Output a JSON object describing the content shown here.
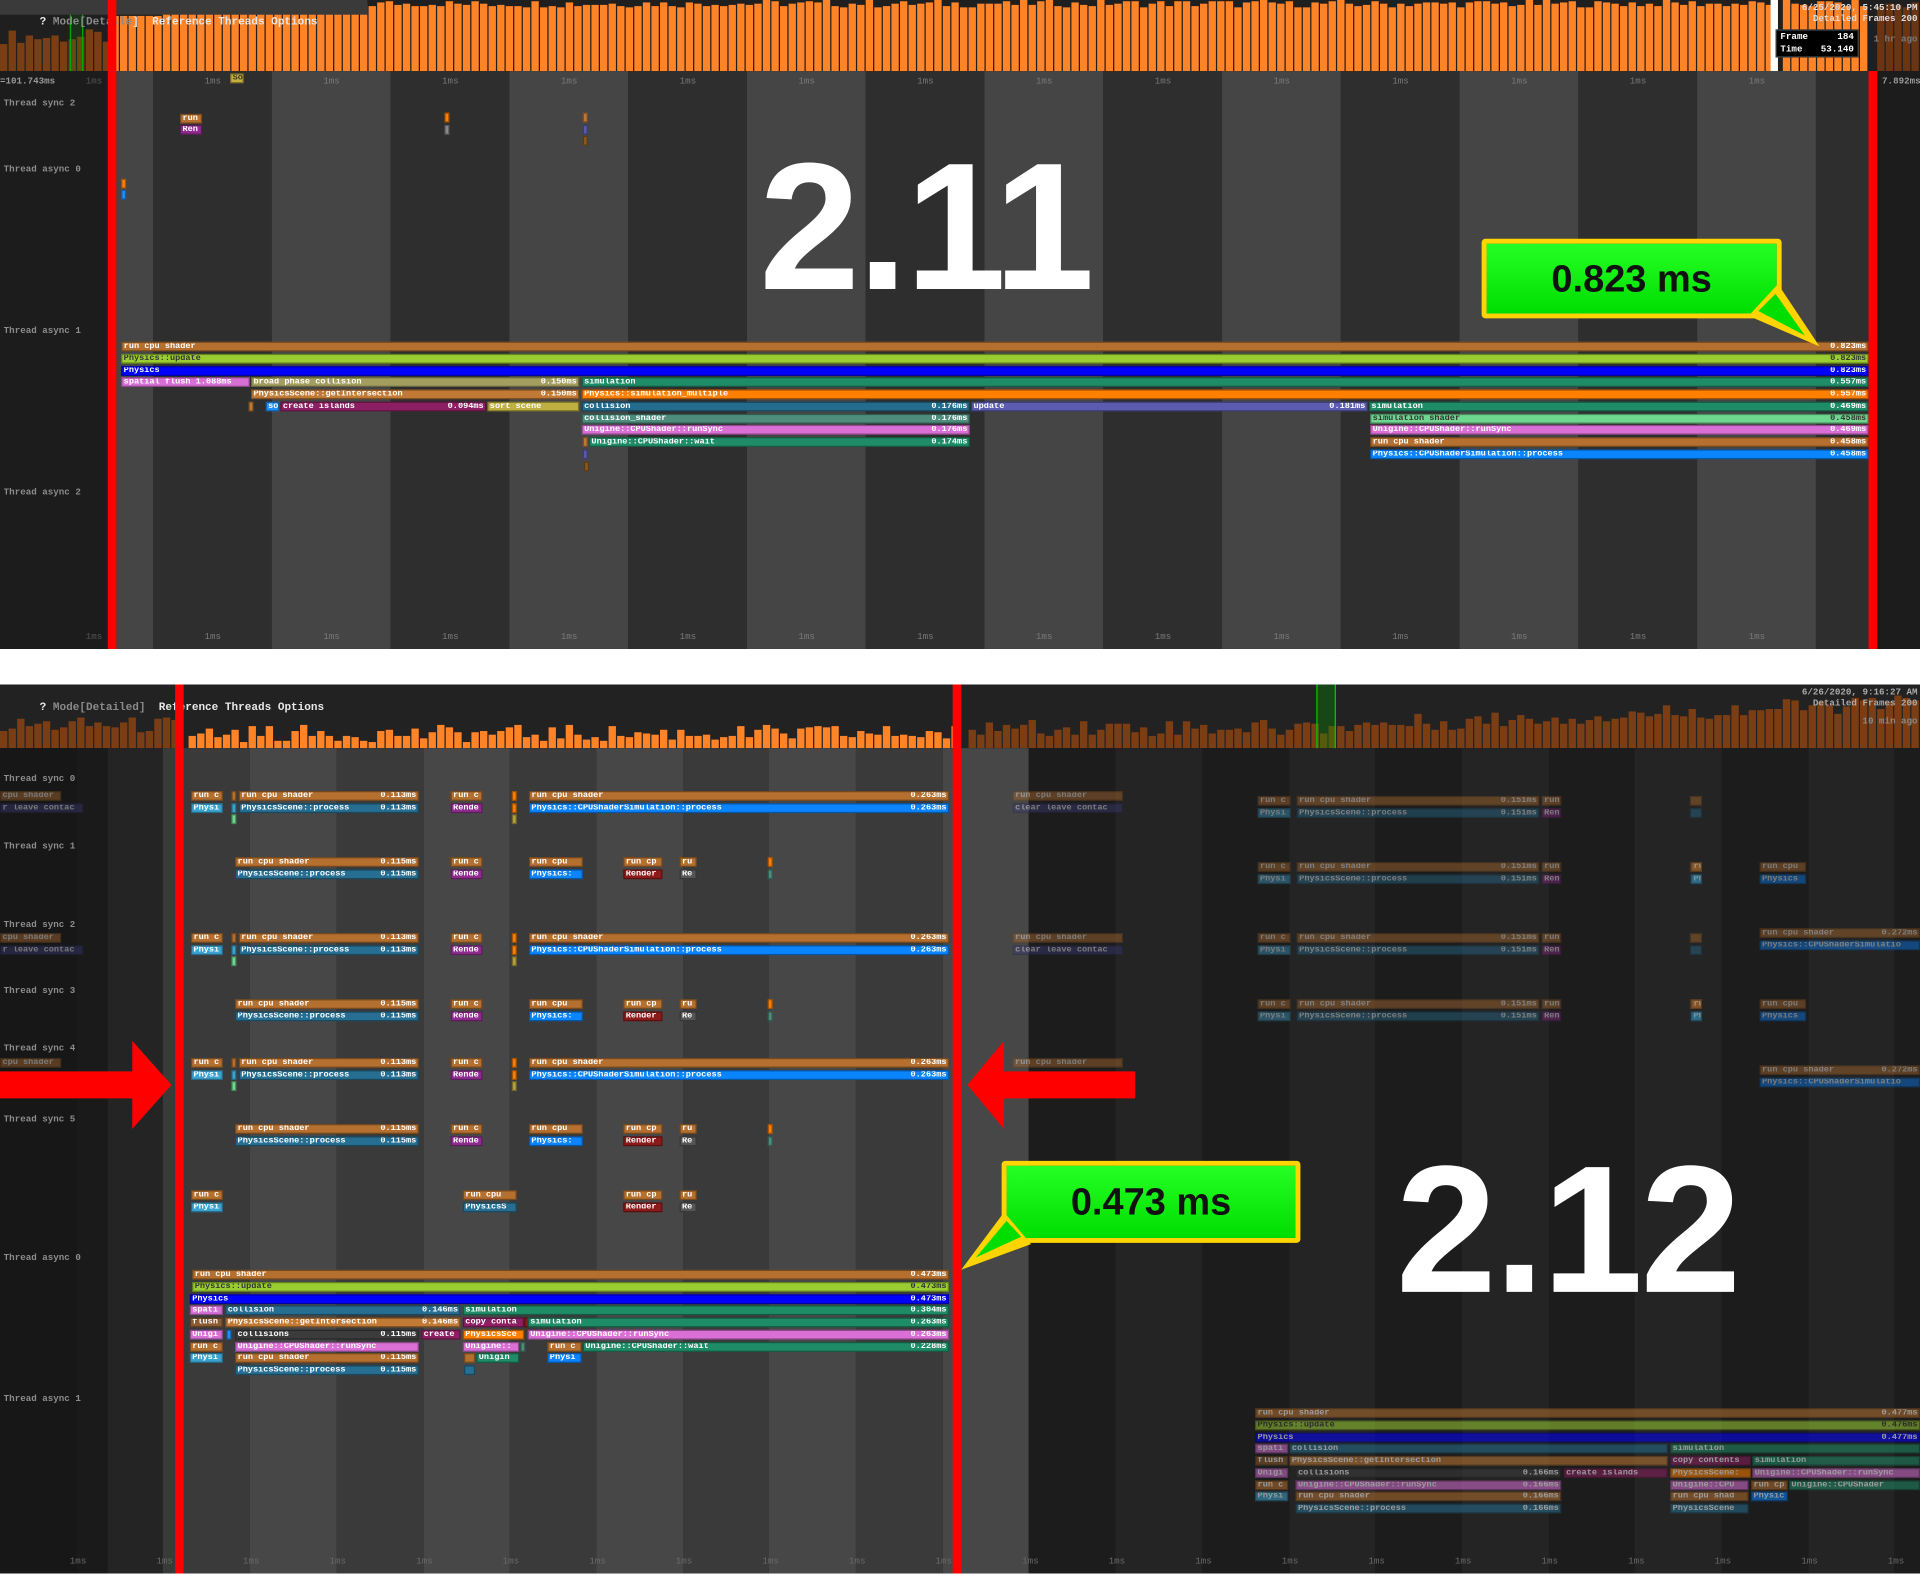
{
  "colors": {
    "accent_red": "#ff0000",
    "callout_green": "#00ff00",
    "callout_border": "#ffd400",
    "frame_bar_active": "#ff8327",
    "frame_bar_dim": "#7b3d13"
  },
  "top": {
    "menu": {
      "prefix": "? ",
      "mode": "Mode[Detaile",
      "mode_close": "]",
      "items": [
        "Reference",
        "Threads",
        "Options"
      ]
    },
    "left_readout": "=101.743ms",
    "right_readout": "7.892ms",
    "date": "6/25/2020, 5:45:10 PM",
    "frames": "Detailed Frames 200",
    "ago": "1 hr ago",
    "frame_box": {
      "frame_label": "Frame",
      "frame": "184",
      "time_label": "Time",
      "time": "53.140"
    },
    "tick_label": "1ms",
    "threads": [
      "Thread sync 2",
      "Thread async 0",
      "Thread async 1",
      "Thread async 2"
    ],
    "callout": "0.823 ms",
    "version": "2.11",
    "small_bars": [
      {
        "label": "run",
        "color": "#b5702f"
      },
      {
        "label": "Ren",
        "color": "#8e2c8e"
      },
      {
        "label": "",
        "color": "#ff8000"
      },
      {
        "label": "",
        "color": "#8a8a8a"
      },
      {
        "label": "",
        "color": "#c07a35"
      },
      {
        "label": "",
        "color": "#5b5bb0"
      },
      {
        "label": "",
        "color": "#8a5a20"
      },
      {
        "label": "So",
        "color": "#c8b040"
      },
      {
        "label": "",
        "color": "#ff8000"
      },
      {
        "label": "",
        "color": "#1e90ff"
      }
    ],
    "bars": [
      {
        "label": "run cpu shader",
        "value": "0.823ms",
        "color": "#b5702f"
      },
      {
        "label": "Physics::update",
        "value": "0.823ms",
        "color": "#9acd32"
      },
      {
        "label": "Physics",
        "value": "0.823ms",
        "color": "#0000ff"
      },
      {
        "label": "spatial flush 1.088ms",
        "value": "",
        "color": "#d670d6"
      },
      {
        "label": "broad phase collision",
        "value": "0.150ms",
        "color": "#a39e60"
      },
      {
        "label": "simulation",
        "value": "0.557ms",
        "color": "#1f8c68"
      },
      {
        "label": "PhysicsScene::getIntersection",
        "value": "0.150ms",
        "color": "#c07a35"
      },
      {
        "label": "Physics::simulation_multiple",
        "value": "0.557ms",
        "color": "#ff8000"
      },
      {
        "label": "",
        "value": "",
        "color": "#c07a35"
      },
      {
        "label": "so",
        "value": "",
        "color": "#1e90ff"
      },
      {
        "label": "create islands",
        "value": "0.094ms",
        "color": "#8c1f62"
      },
      {
        "label": "sort scene",
        "value": "",
        "color": "#bdb040"
      },
      {
        "label": "collision",
        "value": "0.176ms",
        "color": "#236c8e"
      },
      {
        "label": "update",
        "value": "0.181ms",
        "color": "#5b5bb0"
      },
      {
        "label": "simulation",
        "value": "0.469ms",
        "color": "#1f8c68"
      },
      {
        "label": "collision_shader",
        "value": "0.176ms",
        "color": "#4e8d7c"
      },
      {
        "label": "simulation shader",
        "value": "0.458ms",
        "color": "#6fd68f"
      },
      {
        "label": "Unigine::CPUShader::runSync",
        "value": "0.176ms",
        "color": "#da70d6"
      },
      {
        "label": "Unigine::CPUShader::runSync",
        "value": "0.469ms",
        "color": "#da70d6"
      },
      {
        "label": "",
        "value": "",
        "color": "#c07a35"
      },
      {
        "label": "Unigine::CPUShader::wait",
        "value": "0.174ms",
        "color": "#1f8c68"
      },
      {
        "label": "run cpu shader",
        "value": "0.458ms",
        "color": "#b5702f"
      },
      {
        "label": "",
        "value": "",
        "color": "#5b5bb0"
      },
      {
        "label": "Physics::CPUShaderSimulation::process",
        "value": "0.458ms",
        "color": "#0a84ff"
      },
      {
        "label": "",
        "value": "",
        "color": "#8a5a20"
      }
    ]
  },
  "bottom": {
    "menu": {
      "prefix": "? ",
      "mode": "Mode[Detailed]",
      "mode_close": "",
      "items": [
        "Reference",
        "Threads",
        "Options"
      ]
    },
    "date": "6/26/2020, 9:16:27 AM",
    "frames": "Detailed Frames 200",
    "ago": "10 min ago",
    "tick_label": "1ms",
    "threads": [
      "Thread sync 0",
      "Thread sync 1",
      "Thread sync 2",
      "Thread sync 3",
      "Thread sync 4",
      "Thread sync 5",
      "Thread async 0",
      "Thread async 1"
    ],
    "callout": "0.473 ms",
    "version": "2.12",
    "sync_a": [
      {
        "label": "run c",
        "value": "",
        "color": "#b5702f"
      },
      {
        "label": "",
        "value": "",
        "color": "#b5702f"
      },
      {
        "label": "run cpu shader",
        "value": "0.113ms",
        "color": "#b5702f"
      },
      {
        "label": "run c",
        "value": "",
        "color": "#b5702f"
      },
      {
        "label": "",
        "value": "",
        "color": "#ff8000"
      },
      {
        "label": "run cpu shader",
        "value": "0.263ms",
        "color": "#b5702f"
      },
      {
        "label": "Physi",
        "value": "",
        "color": "#3ba3d0"
      },
      {
        "label": "",
        "value": "",
        "color": "#3ba3d0"
      },
      {
        "label": "PhysicsScene::process",
        "value": "0.113ms",
        "color": "#276f92"
      },
      {
        "label": "Rende",
        "value": "",
        "color": "#8e2c8e"
      },
      {
        "label": "",
        "value": "",
        "color": "#ff8000"
      },
      {
        "label": "Physics::CPUShaderSimulation::process",
        "value": "0.263ms",
        "color": "#0a84ff"
      },
      {
        "label": "",
        "value": "",
        "color": "#6fd68f"
      },
      {
        "label": "",
        "value": "",
        "color": "#b3a240"
      }
    ],
    "sync_b": [
      {
        "label": "run cpu shader",
        "value": "0.115ms",
        "color": "#b5702f"
      },
      {
        "label": "run c",
        "value": "",
        "color": "#b5702f"
      },
      {
        "label": "run cpu",
        "value": "",
        "color": "#b5702f"
      },
      {
        "label": "run cp",
        "value": "",
        "color": "#b5702f"
      },
      {
        "label": "ru",
        "value": "",
        "color": "#b5702f"
      },
      {
        "label": "",
        "value": "",
        "color": "#ff8000"
      },
      {
        "label": "PhysicsScene::process",
        "value": "0.115ms",
        "color": "#276f92"
      },
      {
        "label": "Rende",
        "value": "",
        "color": "#8e2c8e"
      },
      {
        "label": "Physics:",
        "value": "",
        "color": "#0a84ff"
      },
      {
        "label": "Render",
        "value": "",
        "color": "#8b1a1a"
      },
      {
        "label": "Re",
        "value": "",
        "color": "#555555"
      },
      {
        "label": "",
        "value": "",
        "color": "#4e8d7c"
      }
    ],
    "sync_c": [
      {
        "label": "run c",
        "value": "",
        "color": "#b5702f"
      },
      {
        "label": "Physi",
        "value": "",
        "color": "#3ba3d0"
      },
      {
        "label": "run cpu",
        "value": "",
        "color": "#b5702f"
      },
      {
        "label": "PhysicsS",
        "value": "",
        "color": "#276f92"
      },
      {
        "label": "run cp",
        "value": "",
        "color": "#b5702f"
      },
      {
        "label": "Render",
        "value": "",
        "color": "#8b1a1a"
      },
      {
        "label": "ru",
        "value": "",
        "color": "#b5702f"
      },
      {
        "label": "Re",
        "value": "",
        "color": "#555555"
      }
    ],
    "async0": [
      {
        "label": "run cpu shader",
        "value": "0.473ms",
        "color": "#b5702f"
      },
      {
        "label": "Physics::update",
        "value": "0.473ms",
        "color": "#9acd32"
      },
      {
        "label": "Physics",
        "value": "0.473ms",
        "color": "#0000ff"
      },
      {
        "label": "spati",
        "value": "",
        "color": "#d670d6"
      },
      {
        "label": "collision",
        "value": "0.146ms",
        "color": "#276f92"
      },
      {
        "label": "simulation",
        "value": "0.304ms",
        "color": "#1f8c68"
      },
      {
        "label": "flush",
        "value": "",
        "color": "#8a5a30"
      },
      {
        "label": "PhysicsScene::getIntersection",
        "value": "0.146ms",
        "color": "#c07a35"
      },
      {
        "label": "copy conta",
        "value": "",
        "color": "#8c1f62"
      },
      {
        "label": "",
        "value": "",
        "color": "#8b1a1a"
      },
      {
        "label": "simulation",
        "value": "0.263ms",
        "color": "#1f8c68"
      },
      {
        "label": "Unigi",
        "value": "",
        "color": "#d670d6"
      },
      {
        "label": "",
        "value": "",
        "color": "#1e90ff"
      },
      {
        "label": "collisions",
        "value": "0.115ms",
        "color": "#3c3c3c"
      },
      {
        "label": "create",
        "value": "",
        "color": "#8c1f62"
      },
      {
        "label": "PhysicsSce",
        "value": "",
        "color": "#ff8000"
      },
      {
        "label": "Unigine::CPUShader::runSync",
        "value": "0.263ms",
        "color": "#da70d6"
      },
      {
        "label": "run c",
        "value": "",
        "color": "#b5702f"
      },
      {
        "label": "Unigine::CPUShader::runSync",
        "value": "",
        "color": "#da70d6"
      },
      {
        "label": "Unigine::",
        "value": "",
        "color": "#da70d6"
      },
      {
        "label": "",
        "value": "",
        "color": "#4e8d7c"
      },
      {
        "label": "run c",
        "value": "",
        "color": "#b5702f"
      },
      {
        "label": "Unigine::CPUShader::wait",
        "value": "0.228ms",
        "color": "#1f8c68"
      },
      {
        "label": "Physi",
        "value": "",
        "color": "#3ba3d0"
      },
      {
        "label": "run cpu shader",
        "value": "0.115ms",
        "color": "#b5702f"
      },
      {
        "label": "",
        "value": "",
        "color": "#b5702f"
      },
      {
        "label": "Unigin",
        "value": "",
        "color": "#1f8c68"
      },
      {
        "label": "Physi",
        "value": "",
        "color": "#0a84ff"
      },
      {
        "label": "PhysicsScene::process",
        "value": "0.115ms",
        "color": "#276f92"
      },
      {
        "label": "",
        "value": "",
        "color": "#276f92"
      }
    ],
    "dim_left": [
      {
        "label": "cpu shader",
        "value": "",
        "color": "#b5702f"
      },
      {
        "label": "r leave contac",
        "value": "",
        "color": "#3b3b7a"
      }
    ],
    "dim_mid": [
      {
        "label": "run cpu shader",
        "value": "",
        "color": "#b5702f"
      },
      {
        "label": "clear leave contac",
        "value": "",
        "color": "#3b3b7a"
      }
    ],
    "dim_right_a": [
      {
        "label": "run c",
        "value": "",
        "color": "#b5702f"
      },
      {
        "label": "run cpu shader",
        "value": "0.151ms",
        "color": "#b5702f"
      },
      {
        "label": "run",
        "value": "",
        "color": "#b5702f"
      },
      {
        "label": "Physi",
        "value": "",
        "color": "#3ba3d0"
      },
      {
        "label": "PhysicsScene::process",
        "value": "0.151ms",
        "color": "#276f92"
      },
      {
        "label": "Ren",
        "value": "",
        "color": "#8e2c8e"
      },
      {
        "label": "",
        "value": "",
        "color": "#b5702f"
      },
      {
        "label": "",
        "value": "",
        "color": "#276f92"
      }
    ],
    "dim_right_b": [
      {
        "label": "ru",
        "value": "",
        "color": "#b5702f"
      },
      {
        "label": "Ph",
        "value": "",
        "color": "#3ba3d0"
      },
      {
        "label": "run cpu",
        "value": "",
        "color": "#b5702f"
      },
      {
        "label": "Physics",
        "value": "",
        "color": "#0a84ff"
      }
    ],
    "dim_right_c": [
      {
        "label": "run cpu shader",
        "value": "0.272ms",
        "color": "#b5702f"
      },
      {
        "label": "Physics::CPUShaderSimulatio",
        "value": "",
        "color": "#0a84ff"
      }
    ],
    "async1": [
      {
        "label": "run cpu shader",
        "value": "0.477ms",
        "color": "#b5702f"
      },
      {
        "label": "Physics::update",
        "value": "0.476ms",
        "color": "#9acd32"
      },
      {
        "label": "Physics",
        "value": "0.477ms",
        "color": "#0000ff"
      },
      {
        "label": "spati",
        "value": "",
        "color": "#d670d6"
      },
      {
        "label": "collision",
        "value": "",
        "color": "#276f92"
      },
      {
        "label": "simulation",
        "value": "",
        "color": "#1f8c68"
      },
      {
        "label": "flush",
        "value": "",
        "color": "#8a5a30"
      },
      {
        "label": "PhysicsScene::getIntersection",
        "value": "",
        "color": "#c07a35"
      },
      {
        "label": "copy contents",
        "value": "",
        "color": "#8c1f62"
      },
      {
        "label": "simulation",
        "value": "",
        "color": "#1f8c68"
      },
      {
        "label": "Unigi",
        "value": "",
        "color": "#d670d6"
      },
      {
        "label": "collisions",
        "value": "0.166ms",
        "color": "#3c3c3c"
      },
      {
        "label": "create islands",
        "value": "",
        "color": "#8c1f62"
      },
      {
        "label": "PhysicsScene:",
        "value": "",
        "color": "#ff8000"
      },
      {
        "label": "Unigine::CPUShader::runSync",
        "value": "",
        "color": "#da70d6"
      },
      {
        "label": "run c",
        "value": "",
        "color": "#b5702f"
      },
      {
        "label": "Unigine::CPUShader::runSync",
        "value": "0.166ms",
        "color": "#da70d6"
      },
      {
        "label": "Unigine::CPU",
        "value": "",
        "color": "#da70d6"
      },
      {
        "label": "run cp",
        "value": "",
        "color": "#b5702f"
      },
      {
        "label": "Unigine::CPUShader",
        "value": "",
        "color": "#1f8c68"
      },
      {
        "label": "Physi",
        "value": "",
        "color": "#3ba3d0"
      },
      {
        "label": "run cpu shader",
        "value": "0.166ms",
        "color": "#b5702f"
      },
      {
        "label": "run cpu shad",
        "value": "",
        "color": "#b5702f"
      },
      {
        "label": "Physic",
        "value": "",
        "color": "#0a84ff"
      },
      {
        "label": "PhysicsScene::process",
        "value": "0.166ms",
        "color": "#276f92"
      },
      {
        "label": "PhysicsScene",
        "value": "",
        "color": "#276f92"
      }
    ]
  }
}
